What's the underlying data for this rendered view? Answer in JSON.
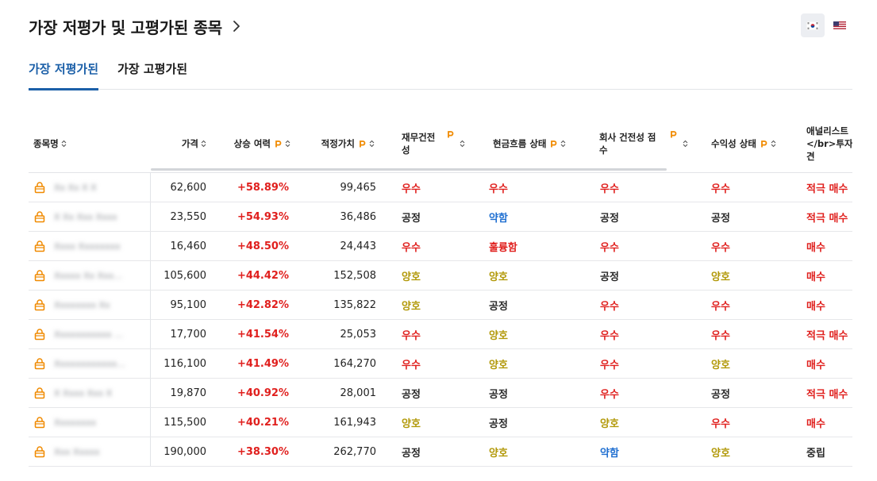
{
  "title": "가장 저평가 및 고평가된 종목",
  "region_flags": [
    {
      "name": "south-korea",
      "active": true
    },
    {
      "name": "united-states",
      "active": false
    }
  ],
  "tabs": [
    "가장 저평가된",
    "가장 고평가된"
  ],
  "active_tab": 0,
  "columns": [
    "종목명",
    "가격",
    "상승 여력",
    "적정가치",
    "재무건전\n성",
    "현금흐름 상태",
    "회사 건전성 점\n수",
    "수익성 상태",
    "애널리스트\n</br>투자의\n견"
  ],
  "colors": {
    "accent": "#1b5fa8",
    "positive": "#e0201e",
    "good": "#b39a0c",
    "weak": "#1f6fd1",
    "neutral": "#2a2a2a",
    "pro_icon": "#f08a00"
  },
  "rows": [
    {
      "name": "Xx Xx X X",
      "price": "62,600",
      "upside": "+58.89%",
      "fair_value": "99,465",
      "financial": "우수",
      "cashflow": "우수",
      "health": "우수",
      "profit": "우수",
      "analyst": "적극 매수"
    },
    {
      "name": "X Xx Xxx Xxxx",
      "price": "23,550",
      "upside": "+54.93%",
      "fair_value": "36,486",
      "financial": "공정",
      "cashflow": "약함",
      "health": "공정",
      "profit": "공정",
      "analyst": "적극 매수"
    },
    {
      "name": "Xxxx Xxxxxxxx",
      "price": "16,460",
      "upside": "+48.50%",
      "fair_value": "24,443",
      "financial": "우수",
      "cashflow": "훌륭함",
      "health": "우수",
      "profit": "우수",
      "analyst": "매수"
    },
    {
      "name": "Xxxxx Xx Xxx…",
      "price": "105,600",
      "upside": "+44.42%",
      "fair_value": "152,508",
      "financial": "양호",
      "cashflow": "양호",
      "health": "공정",
      "profit": "양호",
      "analyst": "매수"
    },
    {
      "name": "Xxxxxxxx Xx",
      "price": "95,100",
      "upside": "+42.82%",
      "fair_value": "135,822",
      "financial": "양호",
      "cashflow": "공정",
      "health": "우수",
      "profit": "우수",
      "analyst": "매수"
    },
    {
      "name": "Xxxxxxxxxxx …",
      "price": "17,700",
      "upside": "+41.54%",
      "fair_value": "25,053",
      "financial": "우수",
      "cashflow": "양호",
      "health": "우수",
      "profit": "우수",
      "analyst": "적극 매수"
    },
    {
      "name": "Xxxxxxxxxxxx…",
      "price": "116,100",
      "upside": "+41.49%",
      "fair_value": "164,270",
      "financial": "우수",
      "cashflow": "양호",
      "health": "우수",
      "profit": "양호",
      "analyst": "매수"
    },
    {
      "name": "X Xxxx Xxx X",
      "price": "19,870",
      "upside": "+40.92%",
      "fair_value": "28,001",
      "financial": "공정",
      "cashflow": "공정",
      "health": "우수",
      "profit": "공정",
      "analyst": "적극 매수"
    },
    {
      "name": "Xxxxxxxx",
      "price": "115,500",
      "upside": "+40.21%",
      "fair_value": "161,943",
      "financial": "양호",
      "cashflow": "공정",
      "health": "양호",
      "profit": "우수",
      "analyst": "매수"
    },
    {
      "name": "Xxx Xxxxx",
      "price": "190,000",
      "upside": "+38.30%",
      "fair_value": "262,770",
      "financial": "공정",
      "cashflow": "양호",
      "health": "약함",
      "profit": "양호",
      "analyst": "중립"
    }
  ]
}
